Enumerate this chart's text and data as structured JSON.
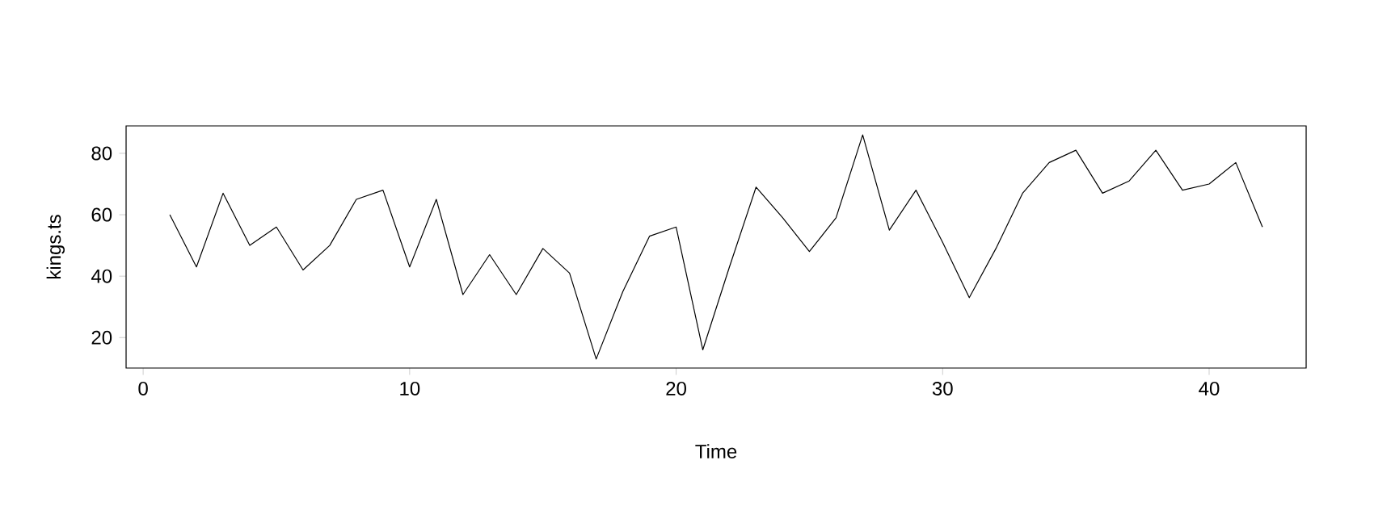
{
  "chart_data": {
    "type": "line",
    "xlabel": "Time",
    "ylabel": "kings.ts",
    "x": [
      1,
      2,
      3,
      4,
      5,
      6,
      7,
      8,
      9,
      10,
      11,
      12,
      13,
      14,
      15,
      16,
      17,
      18,
      19,
      20,
      21,
      22,
      23,
      24,
      25,
      26,
      27,
      28,
      29,
      30,
      31,
      32,
      33,
      34,
      35,
      36,
      37,
      38,
      39,
      40,
      41,
      42
    ],
    "series": [
      {
        "color": "#000000",
        "values": [
          60,
          43,
          67,
          50,
          56,
          42,
          50,
          65,
          68,
          43,
          65,
          34,
          47,
          34,
          49,
          41,
          13,
          35,
          53,
          56,
          16,
          43,
          69,
          59,
          48,
          59,
          86,
          55,
          68,
          51,
          33,
          49,
          67,
          77,
          81,
          67,
          71,
          81,
          68,
          70,
          77,
          56
        ]
      }
    ],
    "xlim": [
      -0.64,
      43.64
    ],
    "ylim": [
      10.08,
      88.92
    ],
    "xticks": [
      0,
      10,
      20,
      30,
      40
    ],
    "yticks": [
      20,
      40,
      60,
      80
    ],
    "grid": false,
    "marker": "none",
    "line_style": "solid"
  }
}
